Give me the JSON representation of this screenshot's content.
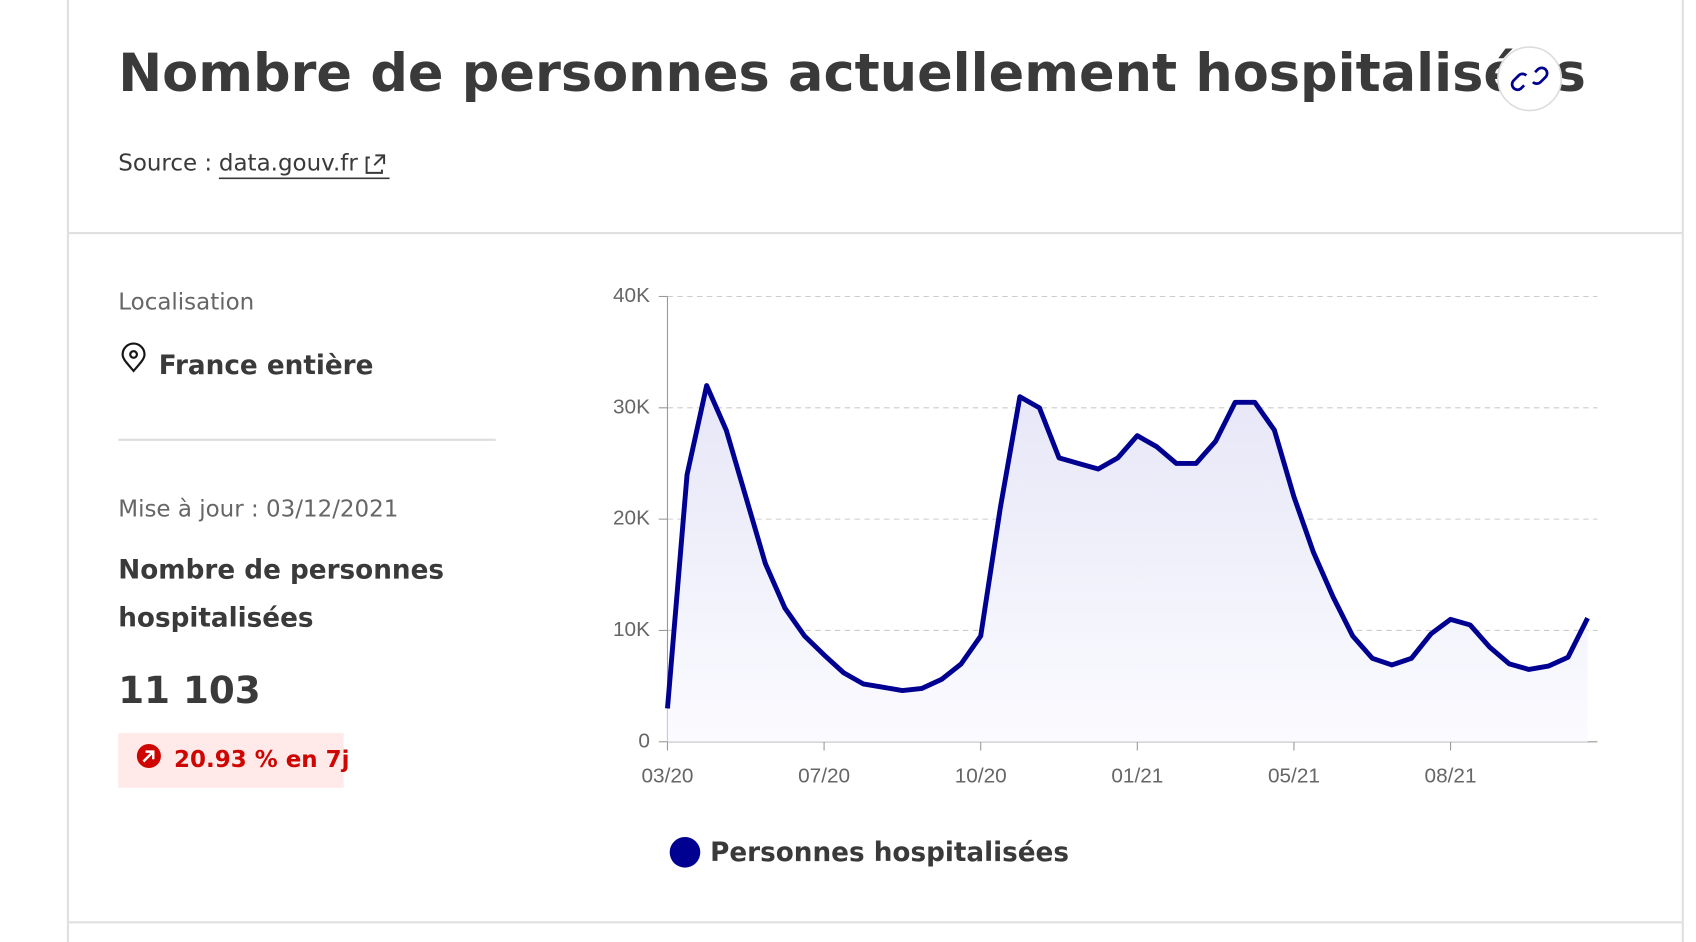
{
  "header": {
    "title": "Nombre de personnes actuellement hospitalisées",
    "source_label": "Source :",
    "source_link": "data.gouv.fr"
  },
  "left": {
    "location_label": "Localisation",
    "location": "France entière",
    "update": "Mise à jour : 03/12/2021",
    "metric_line1": "Nombre de personnes",
    "metric_line2": "hospitalisées",
    "value": "11 103",
    "change": "20.93 % en 7j"
  },
  "chart_data": {
    "type": "line",
    "categories": [
      "03/20",
      null,
      null,
      null,
      null,
      null,
      null,
      null,
      "07/20",
      null,
      null,
      null,
      null,
      null,
      null,
      null,
      "10/20",
      null,
      null,
      null,
      null,
      null,
      null,
      null,
      "01/21",
      null,
      null,
      null,
      null,
      null,
      null,
      null,
      "05/21",
      null,
      null,
      null,
      null,
      null,
      null,
      null,
      "08/21",
      null,
      null,
      null,
      null,
      null,
      null,
      null
    ],
    "series": [
      {
        "name": "Personnes hospitalisées",
        "color": "#000091",
        "values": [
          3000,
          24000,
          32000,
          28000,
          22000,
          16000,
          12000,
          9500,
          7800,
          6200,
          5200,
          4900,
          4600,
          4800,
          5600,
          7000,
          9500,
          21000,
          31000,
          30000,
          25500,
          25000,
          24500,
          25500,
          27500,
          26500,
          25000,
          25000,
          27000,
          30500,
          30500,
          28000,
          22000,
          17000,
          13000,
          9500,
          7500,
          6900,
          7500,
          9700,
          11000,
          10500,
          8500,
          7000,
          6500,
          6800,
          7600,
          11103
        ]
      }
    ],
    "ylim": [
      0,
      40000
    ],
    "yticks": [
      0,
      {
        "value": 10000,
        "label": "10K"
      },
      {
        "value": 20000,
        "label": "20K"
      },
      {
        "value": 30000,
        "label": "30K"
      },
      {
        "value": 40000,
        "label": "40K"
      }
    ],
    "grid": true,
    "area": true
  }
}
